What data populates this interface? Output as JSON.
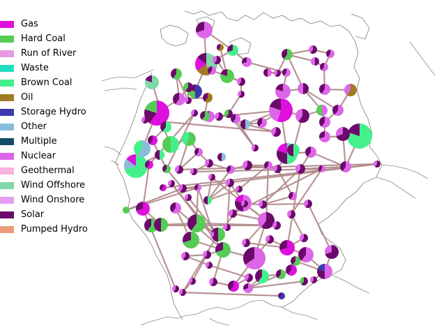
{
  "legend": [
    {
      "label": "Gas",
      "color": "#dd10dd"
    },
    {
      "label": "Hard Coal",
      "color": "#55cc55"
    },
    {
      "label": "Run of River",
      "color": "#e59ae5"
    },
    {
      "label": "Waste",
      "color": "#22dcbc"
    },
    {
      "label": "Brown Coal",
      "color": "#44f08a"
    },
    {
      "label": "Oil",
      "color": "#a07a22"
    },
    {
      "label": "Storage Hydro",
      "color": "#3a3aae"
    },
    {
      "label": "Other",
      "color": "#88bcd9"
    },
    {
      "label": "Multiple",
      "color": "#124a6a"
    },
    {
      "label": "Nuclear",
      "color": "#dd66e8"
    },
    {
      "label": "Geothermal",
      "color": "#f7b2dd"
    },
    {
      "label": "Wind Offshore",
      "color": "#80d8a8"
    },
    {
      "label": "Wind Onshore",
      "color": "#e4a0f0"
    },
    {
      "label": "Solar",
      "color": "#6c0a6c"
    },
    {
      "label": "Pumped Hydro",
      "color": "#ec9c7a"
    }
  ],
  "colors": {
    "line": "#b08888",
    "border": "#555555"
  }
}
